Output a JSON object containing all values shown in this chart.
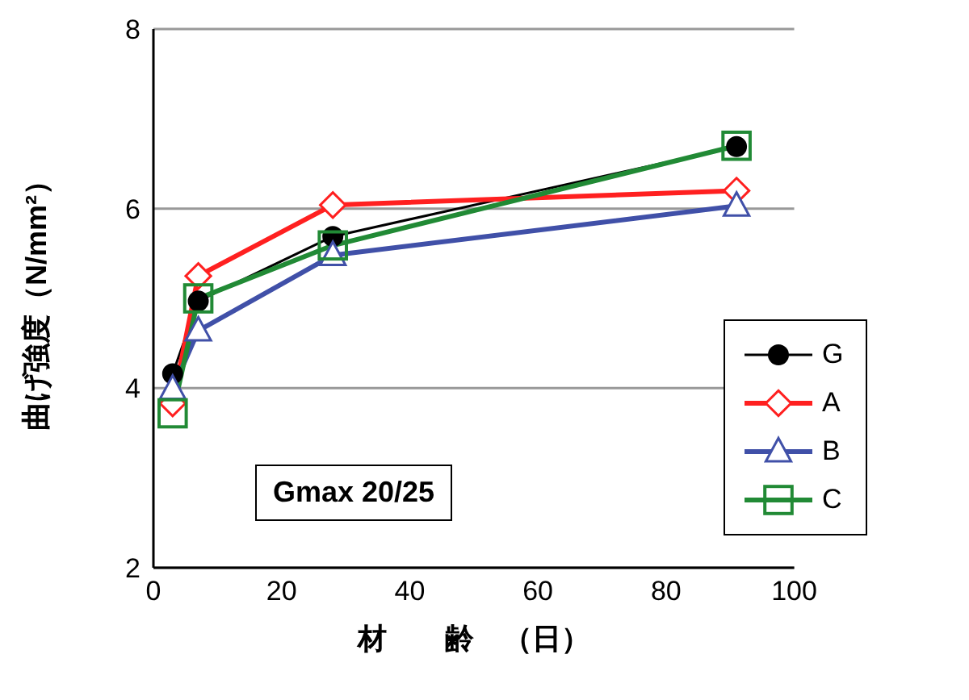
{
  "chart_data": {
    "type": "line",
    "xlabel": "材　　齢　（日）",
    "ylabel": "曲げ強度（N/mm²）",
    "x": [
      3,
      7,
      28,
      91
    ],
    "series": [
      {
        "name": "G",
        "color": "#000000",
        "values": [
          4.16,
          4.97,
          5.69,
          6.69
        ],
        "marker": "circle"
      },
      {
        "name": "A",
        "color": "#ff2020",
        "values": [
          3.83,
          5.25,
          6.04,
          6.2
        ],
        "marker": "diamond"
      },
      {
        "name": "B",
        "color": "#4050a8",
        "values": [
          3.99,
          4.64,
          5.48,
          6.03
        ],
        "marker": "triangle"
      },
      {
        "name": "C",
        "color": "#218a35",
        "values": [
          3.72,
          5.0,
          5.59,
          6.7
        ],
        "marker": "square"
      }
    ],
    "xlim": [
      0,
      100
    ],
    "xticks": [
      0,
      20,
      40,
      60,
      80,
      100
    ],
    "ylim": [
      2,
      8
    ],
    "yticks": [
      2,
      4,
      6,
      8
    ],
    "grid": "y",
    "legend": "bottom right",
    "annotations": [
      "Gmax 20/25"
    ]
  }
}
